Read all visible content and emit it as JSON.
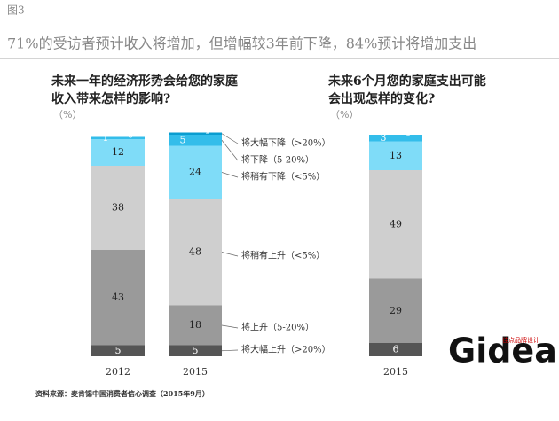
{
  "header": "图3",
  "headline": "71%的受访者预计收入将增加，但增幅较3年前下降，84%预计将增加支出",
  "source": "资料来源：麦肯锡中国消费者信心调查（2015年9月）",
  "logo": {
    "text": "Gidea",
    "tagline": "佳点品牌设计"
  },
  "chart_data": {
    "type": "stacked-bar",
    "panels": [
      {
        "title": [
          "未来一年的经济形势会给您的家庭",
          "收入带来怎样的影响?"
        ],
        "unit": "（%）"
      },
      {
        "title": [
          "未来6个月您的家庭支出可能",
          "会出现怎样的变化?"
        ],
        "unit": "（%）"
      }
    ],
    "categories": [
      "2012",
      "2015",
      "2015"
    ],
    "ylim": [
      0,
      100
    ],
    "series": [
      {
        "name": "将大幅上升（>20%）",
        "color": "#555555",
        "values": [
          5,
          5,
          6
        ]
      },
      {
        "name": "将上升（5-20%）",
        "color": "#9a9a9a",
        "values": [
          43,
          18,
          29
        ]
      },
      {
        "name": "将稍有上升（<5%）",
        "color": "#cfcfcf",
        "values": [
          38,
          48,
          49
        ]
      },
      {
        "name": "将稍有下降（<5%）",
        "color": "#7fdcf8",
        "values": [
          12,
          24,
          13
        ]
      },
      {
        "name": "将下降（5-20%）",
        "color": "#33bdea",
        "values": [
          1,
          5,
          3
        ]
      },
      {
        "name": "将大幅下降（>20%）",
        "color": "#0a9dd0",
        "values": [
          0,
          1,
          0
        ]
      }
    ]
  }
}
